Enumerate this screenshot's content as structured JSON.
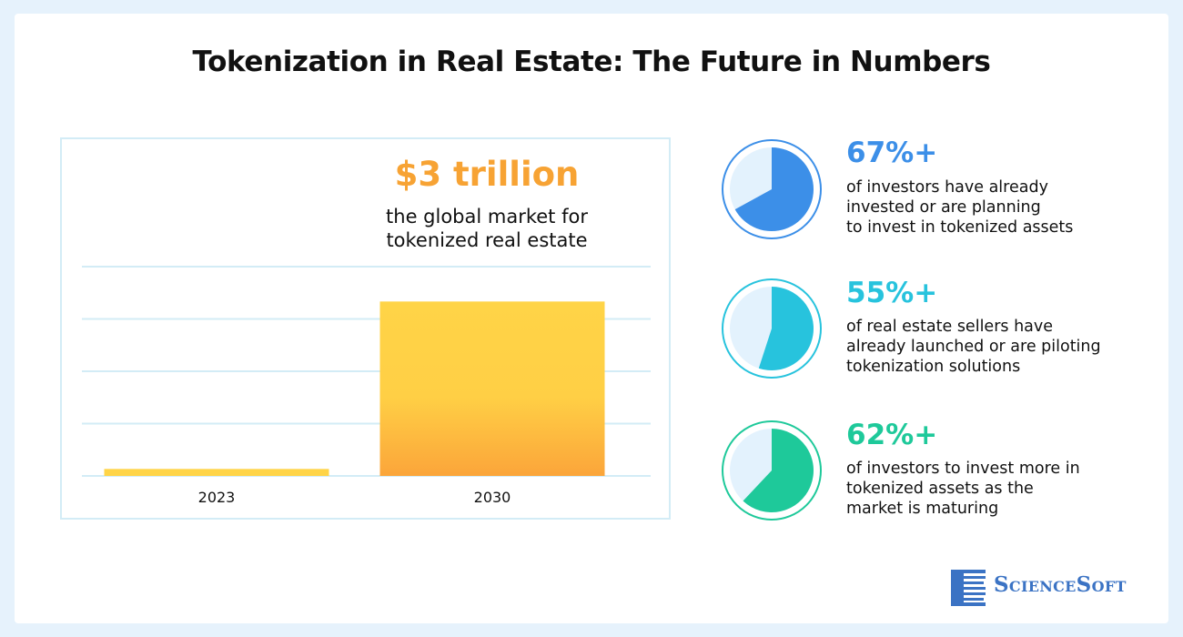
{
  "title": "Tokenization in Real Estate: The Future in Numbers",
  "headline": {
    "value": "$3 trillion",
    "description_line1": "the global market for",
    "description_line2": "tokenized real estate"
  },
  "chart_data": {
    "type": "bar",
    "categories": [
      "2023",
      "2030"
    ],
    "values": [
      0.12,
      3
    ],
    "ylim": [
      0,
      3.6
    ],
    "grid": true,
    "colors": {
      "top": "#ffd447",
      "bottom": "#fba53a",
      "grid": "#d3ecf6"
    }
  },
  "stats": [
    {
      "percent": "67%+",
      "fraction": 0.67,
      "color": "#3c8fe8",
      "lines": [
        "of investors have already",
        "invested or are planning",
        "to invest in tokenized assets"
      ]
    },
    {
      "percent": "55%+",
      "fraction": 0.55,
      "color": "#27c3dd",
      "lines": [
        "of real estate sellers have",
        "already launched or are piloting",
        "tokenization solutions"
      ]
    },
    {
      "percent": "62%+",
      "fraction": 0.62,
      "color": "#1ec99a",
      "lines": [
        "of investors to invest more in",
        "tokenized assets as the",
        "market is maturing"
      ]
    }
  ],
  "brand": {
    "name": "ScienceSoft",
    "icon": "sciencesoft-logo-icon",
    "color": "#3b73c4"
  }
}
